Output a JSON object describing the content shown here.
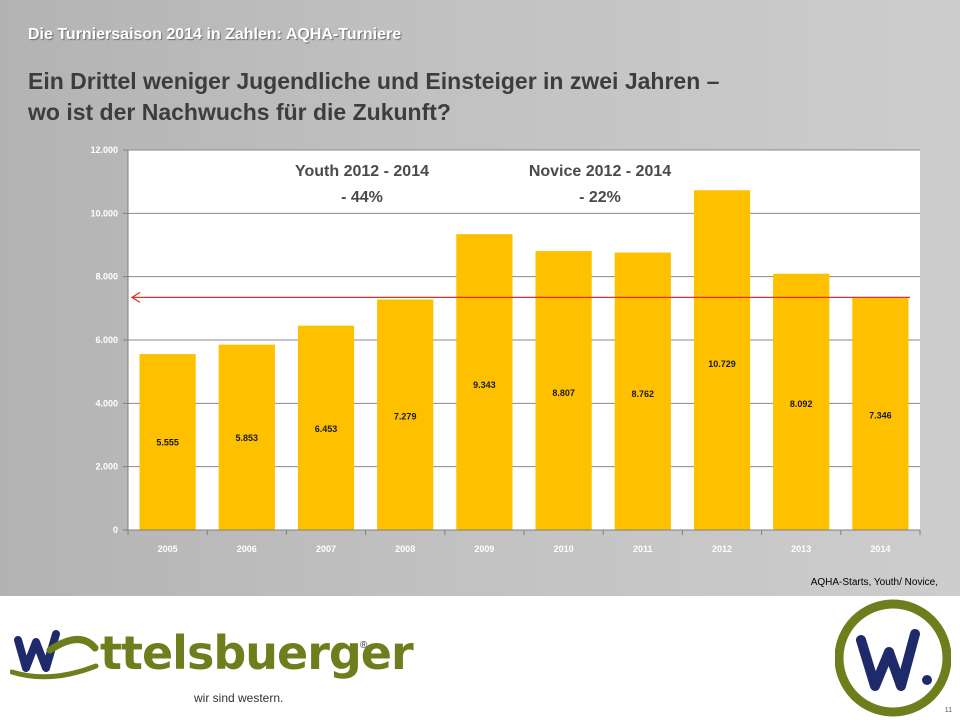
{
  "slide": {
    "supertitle": "Die Turniersaison  2014 in Zahlen: AQHA-Turniere",
    "headline_line1": "Ein Drittel weniger Jugendliche und Einsteiger in zwei Jahren –",
    "headline_line2": "wo ist der Nachwuchs für die Zukunft?",
    "source_note": "AQHA-Starts, Youth/ Novice,",
    "page_number": "11"
  },
  "footer": {
    "brand_name": "ttelsbuerger",
    "registered_mark": "®",
    "tagline": "wir sind western.",
    "brand_color": "#6d7f1d",
    "badge_color": "#6d7f1d"
  },
  "chart_data": {
    "type": "bar",
    "categories": [
      "2005",
      "2006",
      "2007",
      "2008",
      "2009",
      "2010",
      "2011",
      "2012",
      "2013",
      "2014"
    ],
    "values": [
      5555,
      5853,
      6453,
      7279,
      9343,
      8807,
      8762,
      10729,
      8092,
      7346
    ],
    "data_labels": [
      "5.555",
      "5.853",
      "6.453",
      "7.279",
      "9.343",
      "8.807",
      "8.762",
      "10.729",
      "8.092",
      "7.346"
    ],
    "y_ticks": [
      0,
      2000,
      4000,
      6000,
      8000,
      10000,
      12000
    ],
    "y_tick_labels": [
      "0",
      "2.000",
      "4.000",
      "6.000",
      "8.000",
      "10.000",
      "12.000"
    ],
    "ylim": [
      0,
      12000
    ],
    "grid": true,
    "bar_color": "#ffc000",
    "reference_line": {
      "value": 7346,
      "color": "#e0302a"
    },
    "annotations": [
      {
        "line1": "Youth 2012 - 2014",
        "line2": "-  44%"
      },
      {
        "line1": "Novice 2012 - 2014",
        "line2": "-  22%"
      }
    ]
  }
}
